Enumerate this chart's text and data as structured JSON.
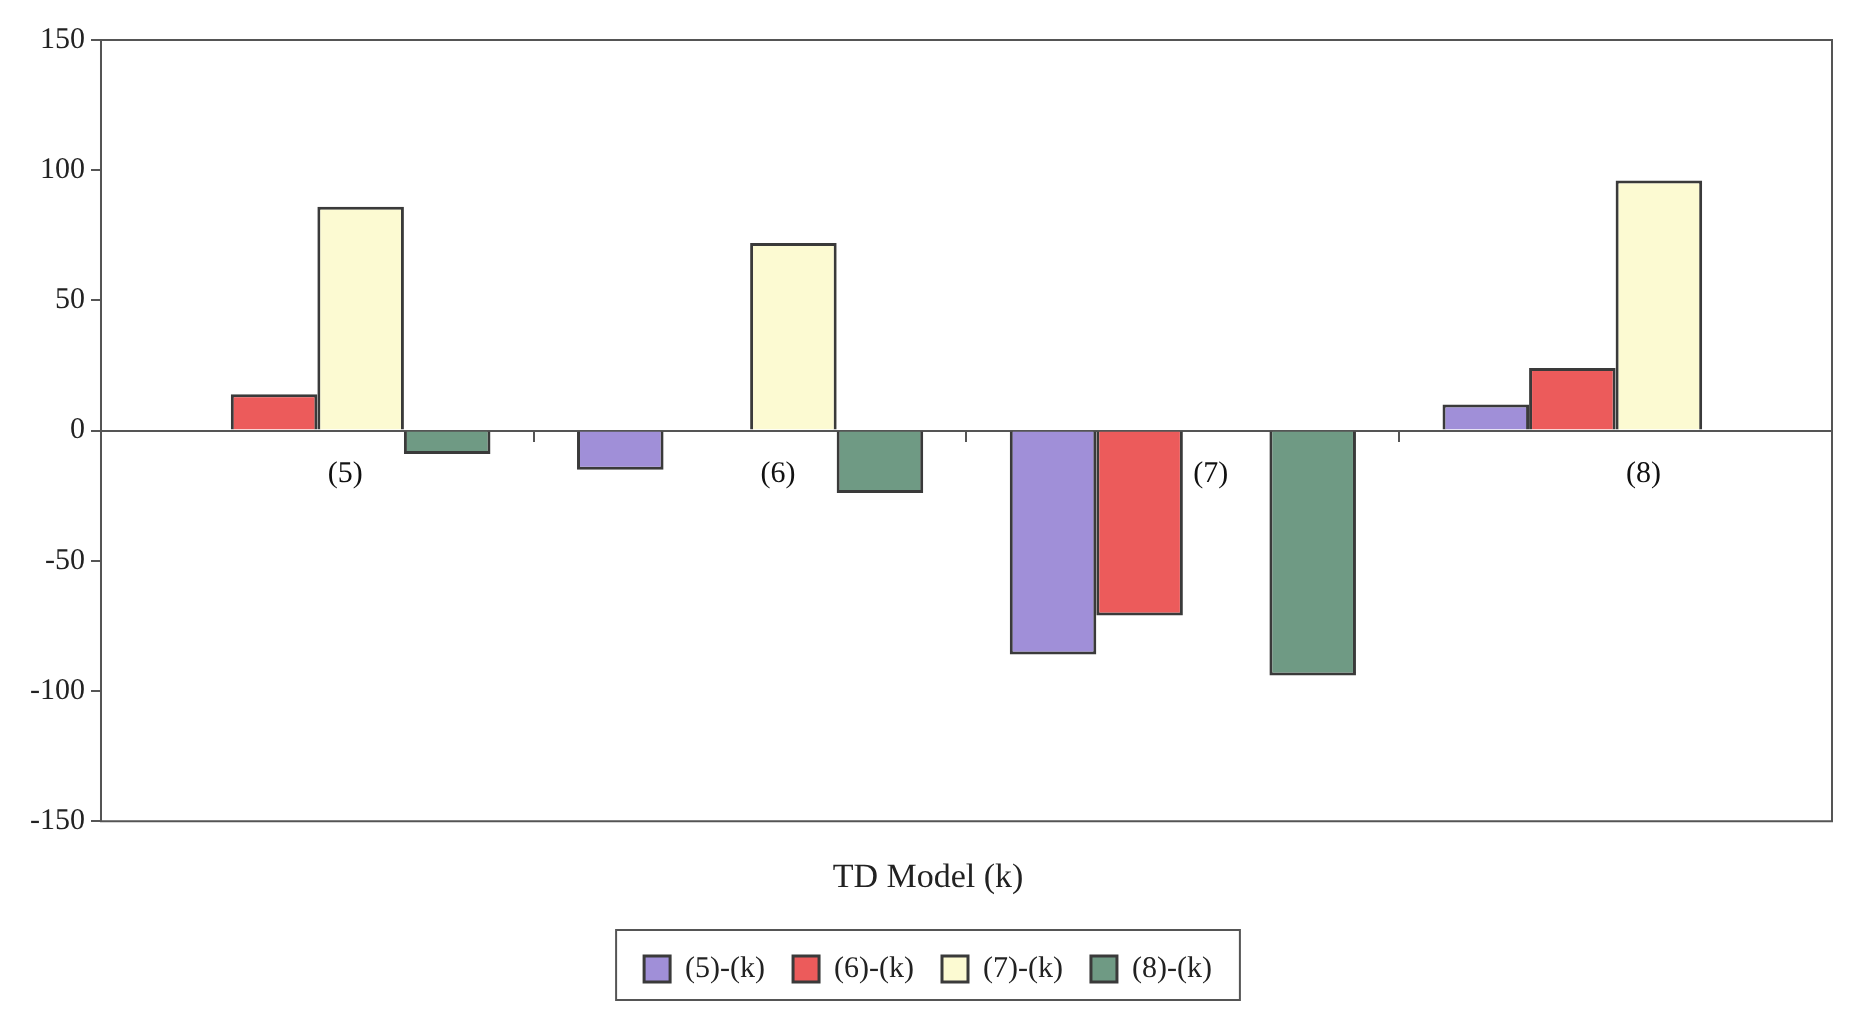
{
  "chart_data": {
    "type": "bar",
    "xlabel": "TD Model (k)",
    "categories": [
      "(5)",
      "(6)",
      "(7)",
      "(8)"
    ],
    "series": [
      {
        "name": "(5)-(k)",
        "color": "#a08fd8",
        "values": [
          null,
          -15,
          -86,
          10
        ]
      },
      {
        "name": "(6)-(k)",
        "color": "#ec5b5b",
        "values": [
          14,
          null,
          -71,
          24
        ]
      },
      {
        "name": "(7)-(k)",
        "color": "#fcfad2",
        "values": [
          86,
          72,
          null,
          96
        ]
      },
      {
        "name": "(8)-(k)",
        "color": "#6f9a84",
        "values": [
          -9,
          -24,
          -94,
          null
        ]
      }
    ],
    "ylim": [
      -150,
      150
    ],
    "yticks": [
      -150,
      -100,
      -50,
      0,
      50,
      100,
      150
    ],
    "grid": false,
    "legend": "bottom"
  }
}
